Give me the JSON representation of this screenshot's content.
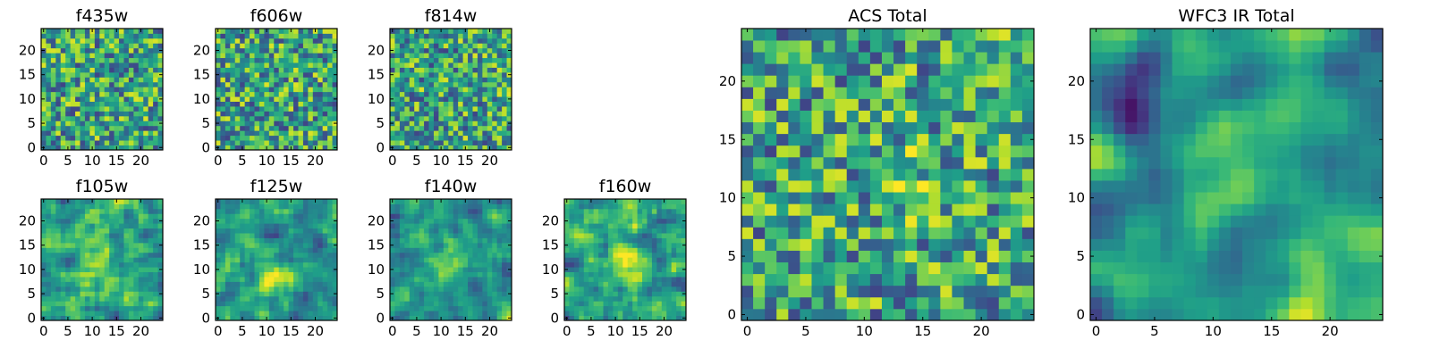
{
  "chart_data": [
    {
      "type": "heatmap",
      "title": "f435w",
      "xticks": [
        "0",
        "5",
        "10",
        "15",
        "20"
      ],
      "yticks": [
        "0",
        "5",
        "10",
        "15",
        "20"
      ],
      "xlim": [
        -0.5,
        24.5
      ],
      "ylim": [
        -0.5,
        24.5
      ],
      "grid_size": 25,
      "seed": 11,
      "smooth": 0,
      "colormap": "viridis",
      "blobs": []
    },
    {
      "type": "heatmap",
      "title": "f606w",
      "xticks": [
        "0",
        "5",
        "10",
        "15",
        "20"
      ],
      "yticks": [
        "0",
        "5",
        "10",
        "15",
        "20"
      ],
      "xlim": [
        -0.5,
        24.5
      ],
      "ylim": [
        -0.5,
        24.5
      ],
      "grid_size": 25,
      "seed": 22,
      "smooth": 0,
      "colormap": "viridis",
      "blobs": []
    },
    {
      "type": "heatmap",
      "title": "f814w",
      "xticks": [
        "0",
        "5",
        "10",
        "15",
        "20"
      ],
      "yticks": [
        "0",
        "5",
        "10",
        "15",
        "20"
      ],
      "xlim": [
        -0.5,
        24.5
      ],
      "ylim": [
        -0.5,
        24.5
      ],
      "grid_size": 25,
      "seed": 33,
      "smooth": 0,
      "colormap": "viridis",
      "blobs": []
    },
    {
      "type": "heatmap",
      "title": "f105w",
      "xticks": [
        "0",
        "5",
        "10",
        "15",
        "20"
      ],
      "yticks": [
        "0",
        "5",
        "10",
        "15",
        "20"
      ],
      "xlim": [
        -0.5,
        24.5
      ],
      "ylim": [
        -0.5,
        24.5
      ],
      "grid_size": 25,
      "seed": 44,
      "smooth": 1,
      "colormap": "viridis",
      "blobs": [
        [
          11,
          11,
          0.25
        ]
      ]
    },
    {
      "type": "heatmap",
      "title": "f125w",
      "xticks": [
        "0",
        "5",
        "10",
        "15",
        "20"
      ],
      "yticks": [
        "0",
        "5",
        "10",
        "15",
        "20"
      ],
      "xlim": [
        -0.5,
        24.5
      ],
      "ylim": [
        -0.5,
        24.5
      ],
      "grid_size": 25,
      "seed": 55,
      "smooth": 1,
      "colormap": "viridis",
      "blobs": [
        [
          11,
          10,
          0.25
        ]
      ]
    },
    {
      "type": "heatmap",
      "title": "f140w",
      "xticks": [
        "0",
        "5",
        "10",
        "15",
        "20"
      ],
      "yticks": [
        "0",
        "5",
        "10",
        "15",
        "20"
      ],
      "xlim": [
        -0.5,
        24.5
      ],
      "ylim": [
        -0.5,
        24.5
      ],
      "grid_size": 25,
      "seed": 66,
      "smooth": 1,
      "colormap": "viridis",
      "blobs": [
        [
          11,
          11,
          0.35
        ]
      ]
    },
    {
      "type": "heatmap",
      "title": "f160w",
      "xticks": [
        "0",
        "5",
        "10",
        "15",
        "20"
      ],
      "yticks": [
        "0",
        "5",
        "10",
        "15",
        "20"
      ],
      "xlim": [
        -0.5,
        24.5
      ],
      "ylim": [
        -0.5,
        24.5
      ],
      "grid_size": 25,
      "seed": 77,
      "smooth": 1,
      "colormap": "viridis",
      "blobs": [
        [
          12,
          12,
          0.4
        ]
      ]
    },
    {
      "type": "heatmap",
      "title": "ACS Total",
      "xticks": [
        "0",
        "5",
        "10",
        "15",
        "20"
      ],
      "yticks": [
        "0",
        "5",
        "10",
        "15",
        "20"
      ],
      "xlim": [
        -0.5,
        24.5
      ],
      "ylim": [
        -0.5,
        24.5
      ],
      "grid_size": 25,
      "seed": 88,
      "smooth": 0,
      "colormap": "viridis",
      "blobs": [
        [
          13,
          12,
          0.15
        ],
        [
          23,
          22,
          0.25
        ]
      ]
    },
    {
      "type": "heatmap",
      "title": "WFC3 IR Total",
      "xticks": [
        "0",
        "5",
        "10",
        "15",
        "20"
      ],
      "yticks": [
        "0",
        "5",
        "10",
        "15",
        "20"
      ],
      "xlim": [
        -0.5,
        24.5
      ],
      "ylim": [
        -0.5,
        24.5
      ],
      "grid_size": 25,
      "seed": 99,
      "smooth": 2,
      "colormap": "viridis",
      "blobs": [
        [
          12,
          11,
          0.45
        ],
        [
          3,
          18,
          -0.45
        ],
        [
          23,
          6,
          0.2
        ]
      ]
    }
  ]
}
